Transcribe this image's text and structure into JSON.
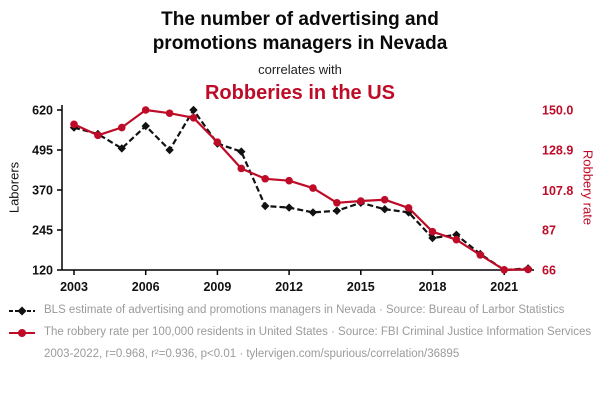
{
  "header": {
    "title_line1": "The number of advertising and",
    "title_line2": "promotions managers in Nevada",
    "connector": "correlates with",
    "red_title": "Robberies in the US"
  },
  "colors": {
    "accent_red": "#be0c28",
    "series_black": "#111111",
    "footer_gray": "#9b9b9b"
  },
  "chart_data": {
    "type": "line",
    "x": [
      2003,
      2004,
      2005,
      2006,
      2007,
      2008,
      2009,
      2010,
      2011,
      2012,
      2013,
      2014,
      2015,
      2016,
      2017,
      2018,
      2019,
      2020,
      2021,
      2022
    ],
    "x_ticks": [
      2003,
      2006,
      2009,
      2012,
      2015,
      2018,
      2021
    ],
    "left_axis": {
      "label": "Laborers",
      "min": 120,
      "max": 620,
      "ticks": [
        "620",
        "495",
        "370",
        "245",
        "120"
      ]
    },
    "right_axis": {
      "label": "Robbery rate",
      "min": 66,
      "max": 150,
      "ticks": [
        "150.0",
        "128.9",
        "107.8",
        "87",
        "66"
      ]
    },
    "grid": false,
    "legend_position": "below",
    "series": [
      {
        "name": "BLS estimate of advertising and promotions managers in Nevada",
        "axis": "left",
        "color": "#111111",
        "line_style": "dashed",
        "marker": "diamond",
        "values": [
          565,
          545,
          500,
          570,
          495,
          620,
          515,
          490,
          320,
          315,
          300,
          305,
          330,
          310,
          300,
          220,
          230,
          170,
          120,
          125
        ]
      },
      {
        "name": "The robbery rate per 100,000 residents in United States",
        "axis": "right",
        "color": "#be0c28",
        "line_style": "solid",
        "marker": "circle",
        "values": [
          142.5,
          136.7,
          140.8,
          150.0,
          148.3,
          145.9,
          133.1,
          119.3,
          113.9,
          112.9,
          109.0,
          101.3,
          102.2,
          102.9,
          98.6,
          86.1,
          81.9,
          73.9,
          66.1,
          66.3
        ]
      }
    ]
  },
  "legend": {
    "series1_text": "BLS estimate of advertising and promotions managers in Nevada · Source: Bureau of Larbor Statistics",
    "series2_text": "The robbery rate per 100,000 residents in United States · Source: FBI Criminal Justice Information Services",
    "stats_line": "2003-2022, r=0.968, r²=0.936, p<0.01 · tylervigen.com/spurious/correlation/36895"
  }
}
